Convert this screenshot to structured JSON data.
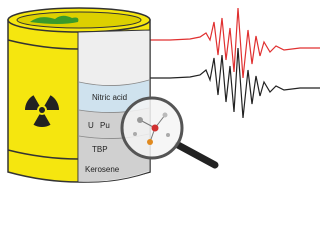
{
  "labels": {
    "nitric_acid": "Nitric acid",
    "u": "U",
    "pu": "Pu",
    "tbp": "TBP",
    "kerosene": "Kerosene"
  }
}
